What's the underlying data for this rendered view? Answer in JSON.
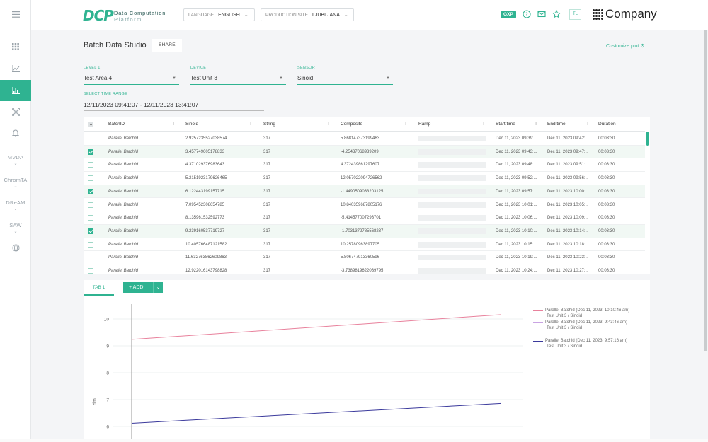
{
  "rail": {
    "items": [
      {
        "name": "menu-icon",
        "glyph": "≡"
      },
      {
        "name": "grid-icon",
        "glyph": "▦"
      },
      {
        "name": "line-chart-icon",
        "glyph": "⟋"
      },
      {
        "name": "bar-chart-icon",
        "glyph": "▮"
      },
      {
        "name": "network-icon",
        "glyph": "✲"
      },
      {
        "name": "bell-icon",
        "glyph": "🔔"
      }
    ],
    "sections": [
      "MVDA",
      "ChromTA",
      "DReAM",
      "SAW"
    ]
  },
  "header": {
    "logo_mark": "DCP",
    "logo_line1": "Data Computation",
    "logo_line2": "Platform",
    "language_label": "LANGUAGE",
    "language_value": "ENGLISH",
    "site_label": "PRODUCTION SITE",
    "site_value": "LJUBLJANA",
    "gxp": "GXP",
    "avatar": "TL",
    "company": "Company"
  },
  "main": {
    "title": "Batch Data Studio",
    "share": "SHARE",
    "customize": "Customize plot",
    "level1_label": "LEVEL 1",
    "level1_value": "Test Area 4",
    "device_label": "DEVICE",
    "device_value": "Test Unit 3",
    "sensor_label": "SENSOR",
    "sensor_value": "Sinoid",
    "time_label": "SELECT TIME RANGE",
    "time_value": "12/11/2023 09:41:07 - 12/11/2023 13:41:07"
  },
  "table": {
    "columns": [
      "BatchID",
      "Sinoid",
      "String",
      "Composite",
      "Ramp",
      "Start time",
      "End time",
      "Duration"
    ],
    "rows": [
      {
        "checked": false,
        "batch": "Parallel BatchId",
        "sinoid": "2.9257235527038574",
        "string": "317",
        "composite": "5.868147373199463",
        "start": "Dec 11, 2023 09:39:...",
        "end": "Dec 11, 2023 09:42:...",
        "duration": "00:03:30"
      },
      {
        "checked": true,
        "batch": "Parallel BatchId",
        "sinoid": "3.457749605178833",
        "string": "317",
        "composite": "-4.25437068939209",
        "start": "Dec 11, 2023 09:43:...",
        "end": "Dec 11, 2023 09:47:...",
        "duration": "00:03:30"
      },
      {
        "checked": false,
        "batch": "Parallel BatchId",
        "sinoid": "4.371029376983643",
        "string": "317",
        "composite": "4.372439861297607",
        "start": "Dec 11, 2023 09:48:...",
        "end": "Dec 11, 2023 09:51:...",
        "duration": "00:03:30"
      },
      {
        "checked": false,
        "batch": "Parallel BatchId",
        "sinoid": "5.2151923179626465",
        "string": "317",
        "composite": "12.057022094726562",
        "start": "Dec 11, 2023 09:52:...",
        "end": "Dec 11, 2023 09:56:...",
        "duration": "00:03:30"
      },
      {
        "checked": true,
        "batch": "Parallel BatchId",
        "sinoid": "6.122443199157715",
        "string": "317",
        "composite": "-1.4490509033203125",
        "start": "Dec 11, 2023 09:57:...",
        "end": "Dec 11, 2023 10:00:...",
        "duration": "00:03:30"
      },
      {
        "checked": false,
        "batch": "Parallel BatchId",
        "sinoid": "7.095452308654785",
        "string": "317",
        "composite": "10.840359687805176",
        "start": "Dec 11, 2023 10:01:...",
        "end": "Dec 11, 2023 10:05:...",
        "duration": "00:03:30"
      },
      {
        "checked": false,
        "batch": "Parallel BatchId",
        "sinoid": "8.135961532592773",
        "string": "317",
        "composite": "-5.414577007293701",
        "start": "Dec 11, 2023 10:06:...",
        "end": "Dec 11, 2023 10:09:...",
        "duration": "00:03:30"
      },
      {
        "checked": true,
        "batch": "Parallel BatchId",
        "sinoid": "9.239160537719727",
        "string": "317",
        "composite": "-1.7031372785568237",
        "start": "Dec 11, 2023 10:10:...",
        "end": "Dec 11, 2023 10:14:...",
        "duration": "00:03:30"
      },
      {
        "checked": false,
        "batch": "Parallel BatchId",
        "sinoid": "10.405766487121582",
        "string": "317",
        "composite": "10.25780963897705",
        "start": "Dec 11, 2023 10:15:...",
        "end": "Dec 11, 2023 10:18:...",
        "duration": "00:03:30"
      },
      {
        "checked": false,
        "batch": "Parallel BatchId",
        "sinoid": "11.632763862609863",
        "string": "317",
        "composite": "5.806747913360596",
        "start": "Dec 11, 2023 10:19:...",
        "end": "Dec 11, 2023 10:23:...",
        "duration": "00:03:30"
      },
      {
        "checked": false,
        "batch": "Parallel BatchId",
        "sinoid": "12.922016143798828",
        "string": "317",
        "composite": "-3.7389819622039795",
        "start": "Dec 11, 2023 10:24:...",
        "end": "Dec 11, 2023 10:27:...",
        "duration": "00:03:30"
      }
    ]
  },
  "tabs": {
    "tab1": "TAB 1",
    "add": "+ ADD"
  },
  "chart_data": {
    "type": "line",
    "ylabel": "dm",
    "ylim": [
      5.6,
      10.6
    ],
    "yticks": [
      "10",
      "9",
      "8",
      "7",
      "6"
    ],
    "grid": true,
    "legend_position": "top-right",
    "series": [
      {
        "name": "Parallel Batchid (Dec 11, 2023, 10:10:46 am)",
        "sub": "Test Unit 3 / Sinoid",
        "color": "#e8819c",
        "x": [
          0,
          1
        ],
        "y": [
          9.24,
          10.16
        ]
      },
      {
        "name": "Parallel Batchid (Dec 11, 2023, 9:43:46 am)",
        "sub": "Test Unit 3 / Sinoid",
        "color": "#c9a3e3",
        "x": [
          0,
          1
        ],
        "y": [
          null,
          null
        ]
      },
      {
        "name": "Parallel Batchid (Dec 11, 2023, 9:57:16 am)",
        "sub": "Test Unit 3 / Sinoid",
        "color": "#3b3a9c",
        "x": [
          0,
          1
        ],
        "y": [
          6.12,
          6.86
        ]
      }
    ]
  }
}
